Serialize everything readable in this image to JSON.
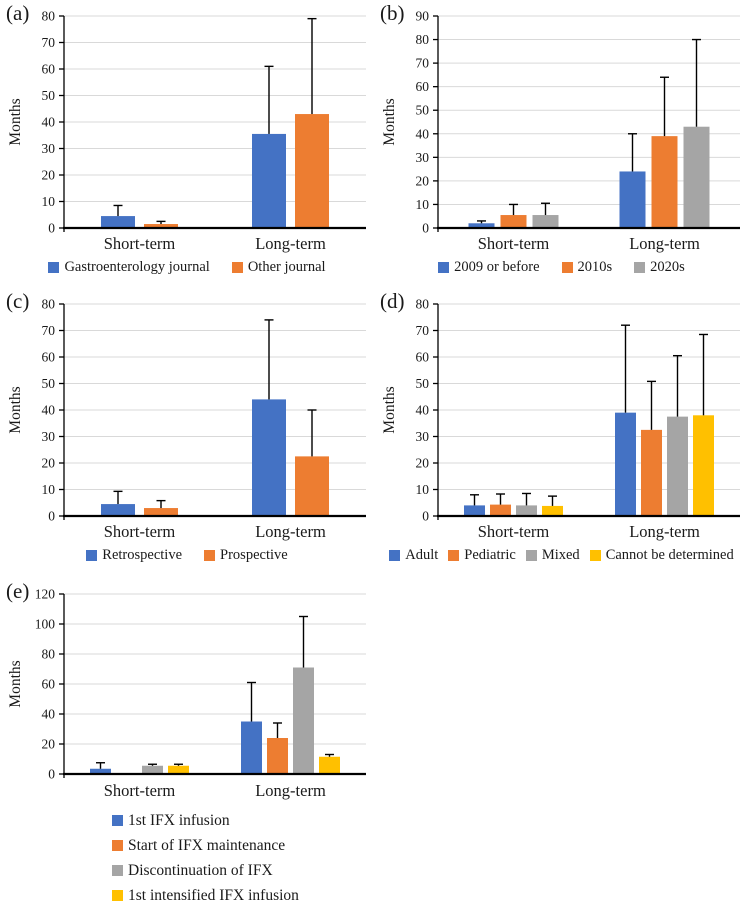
{
  "figure_background": "#ffffff",
  "axis_color": "#000000",
  "gridline_color": "#D9D9D9",
  "error_bar_color": "#000000",
  "chart_data": [
    {
      "panel_label": "(a)",
      "type": "bar",
      "ylabel": "Months",
      "ylim": [
        0,
        80
      ],
      "ytick_step": 10,
      "grid": true,
      "legend_position": "bottom-horizontal",
      "categories": [
        "Short-term",
        "Long-term"
      ],
      "series": [
        {
          "name": "Gastroenterology journal",
          "color": "#4472C4",
          "values": [
            4.5,
            35.5
          ],
          "errors_plus": [
            4,
            25.5
          ]
        },
        {
          "name": "Other journal",
          "color": "#ED7D31",
          "values": [
            1.5,
            43
          ],
          "errors_plus": [
            1,
            36
          ]
        }
      ]
    },
    {
      "panel_label": "(b)",
      "type": "bar",
      "ylabel": "Months",
      "ylim": [
        0,
        90
      ],
      "ytick_step": 10,
      "grid": true,
      "legend_position": "bottom-horizontal",
      "categories": [
        "Short-term",
        "Long-term"
      ],
      "series": [
        {
          "name": "2009 or before",
          "color": "#4472C4",
          "values": [
            2,
            24
          ],
          "errors_plus": [
            1,
            16
          ]
        },
        {
          "name": "2010s",
          "color": "#ED7D31",
          "values": [
            5.5,
            39
          ],
          "errors_plus": [
            4.5,
            25
          ]
        },
        {
          "name": "2020s",
          "color": "#A5A5A5",
          "values": [
            5.5,
            43
          ],
          "errors_plus": [
            5,
            37
          ]
        }
      ]
    },
    {
      "panel_label": "(c)",
      "type": "bar",
      "ylabel": "Months",
      "ylim": [
        0,
        80
      ],
      "ytick_step": 10,
      "grid": true,
      "legend_position": "bottom-horizontal",
      "categories": [
        "Short-term",
        "Long-term"
      ],
      "series": [
        {
          "name": "Retrospective",
          "color": "#4472C4",
          "values": [
            4.5,
            44
          ],
          "errors_plus": [
            4.8,
            30
          ]
        },
        {
          "name": "Prospective",
          "color": "#ED7D31",
          "values": [
            3,
            22.5
          ],
          "errors_plus": [
            2.8,
            17.5
          ]
        }
      ]
    },
    {
      "panel_label": "(d)",
      "type": "bar",
      "ylabel": "Months",
      "ylim": [
        0,
        80
      ],
      "ytick_step": 10,
      "grid": true,
      "legend_position": "bottom-horizontal",
      "categories": [
        "Short-term",
        "Long-term"
      ],
      "series": [
        {
          "name": "Adult",
          "color": "#4472C4",
          "values": [
            4,
            39
          ],
          "errors_plus": [
            4,
            33
          ]
        },
        {
          "name": "Pediatric",
          "color": "#ED7D31",
          "values": [
            4.3,
            32.5
          ],
          "errors_plus": [
            4,
            18.3
          ]
        },
        {
          "name": "Mixed",
          "color": "#A5A5A5",
          "values": [
            4,
            37.5
          ],
          "errors_plus": [
            4.5,
            23
          ]
        },
        {
          "name": "Cannot be determined",
          "color": "#FFC000",
          "values": [
            3.8,
            38
          ],
          "errors_plus": [
            3.7,
            30.5
          ]
        }
      ]
    },
    {
      "panel_label": "(e)",
      "type": "bar",
      "ylabel": "Months",
      "ylim": [
        0,
        120
      ],
      "ytick_step": 20,
      "grid": true,
      "legend_position": "bottom-vertical",
      "categories": [
        "Short-term",
        "Long-term"
      ],
      "series": [
        {
          "name": "1st IFX infusion",
          "color": "#4472C4",
          "values": [
            3.5,
            35
          ],
          "errors_plus": [
            4,
            26
          ]
        },
        {
          "name": "Start of IFX maintenance",
          "color": "#ED7D31",
          "values": [
            0,
            24
          ],
          "errors_plus": [
            0,
            10
          ]
        },
        {
          "name": "Discontinuation of IFX",
          "color": "#A5A5A5",
          "values": [
            5.5,
            71
          ],
          "errors_plus": [
            1,
            34
          ]
        },
        {
          "name": "1st intensified IFX infusion",
          "color": "#FFC000",
          "values": [
            5.5,
            11.5
          ],
          "errors_plus": [
            1,
            1.5
          ]
        }
      ]
    }
  ]
}
